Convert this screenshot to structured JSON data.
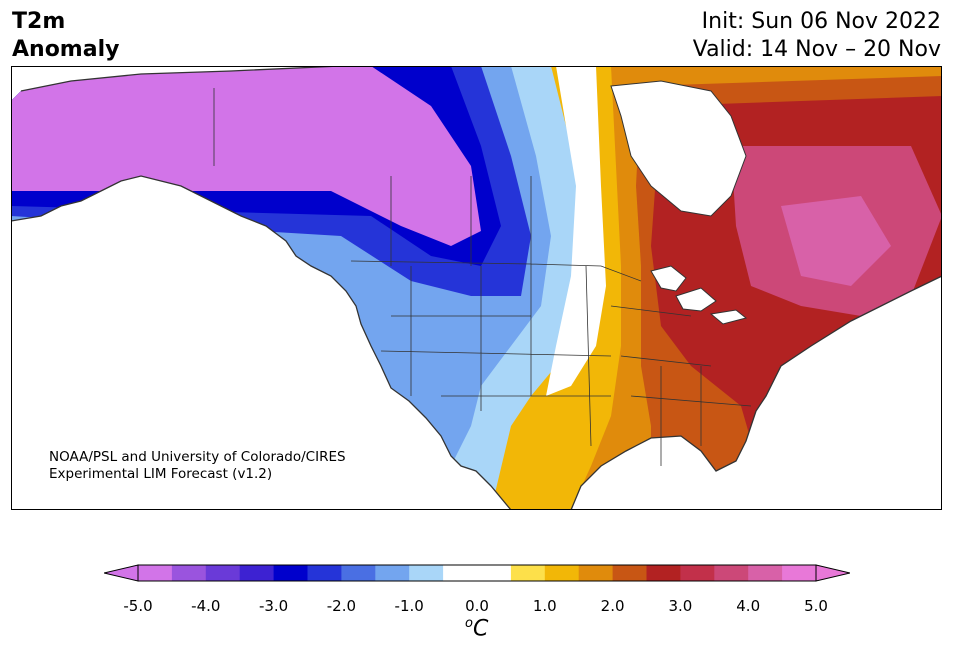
{
  "title": {
    "variable": "T2m",
    "subtitle": "Anomaly",
    "init": "Init: Sun 06 Nov 2022",
    "valid": "Valid: 14 Nov – 20 Nov"
  },
  "credit": {
    "line1": "NOAA/PSL and University of Colorado/CIRES",
    "line2": "Experimental LIM Forecast (v1.2)"
  },
  "colorbar": {
    "unit_base": "o",
    "unit_letter": "C",
    "min": -5.0,
    "max": 5.0,
    "step": 0.5,
    "ticks": [
      "-5.0",
      "-4.0",
      "-3.0",
      "-2.0",
      "-1.0",
      "0.0",
      "1.0",
      "2.0",
      "3.0",
      "4.0",
      "5.0"
    ],
    "colors": [
      "#d274e8",
      "#9a54de",
      "#6a3ad8",
      "#3d22d2",
      "#0000cc",
      "#2534d8",
      "#4a6fe3",
      "#73a5ef",
      "#a9d6f8",
      "#ffffff",
      "#ffffff",
      "#fde04a",
      "#f2b707",
      "#e08b0c",
      "#c85614",
      "#b22222",
      "#c2304a",
      "#cc4878",
      "#d861a8",
      "#e878d8"
    ]
  },
  "map": {
    "region": "North America"
  }
}
